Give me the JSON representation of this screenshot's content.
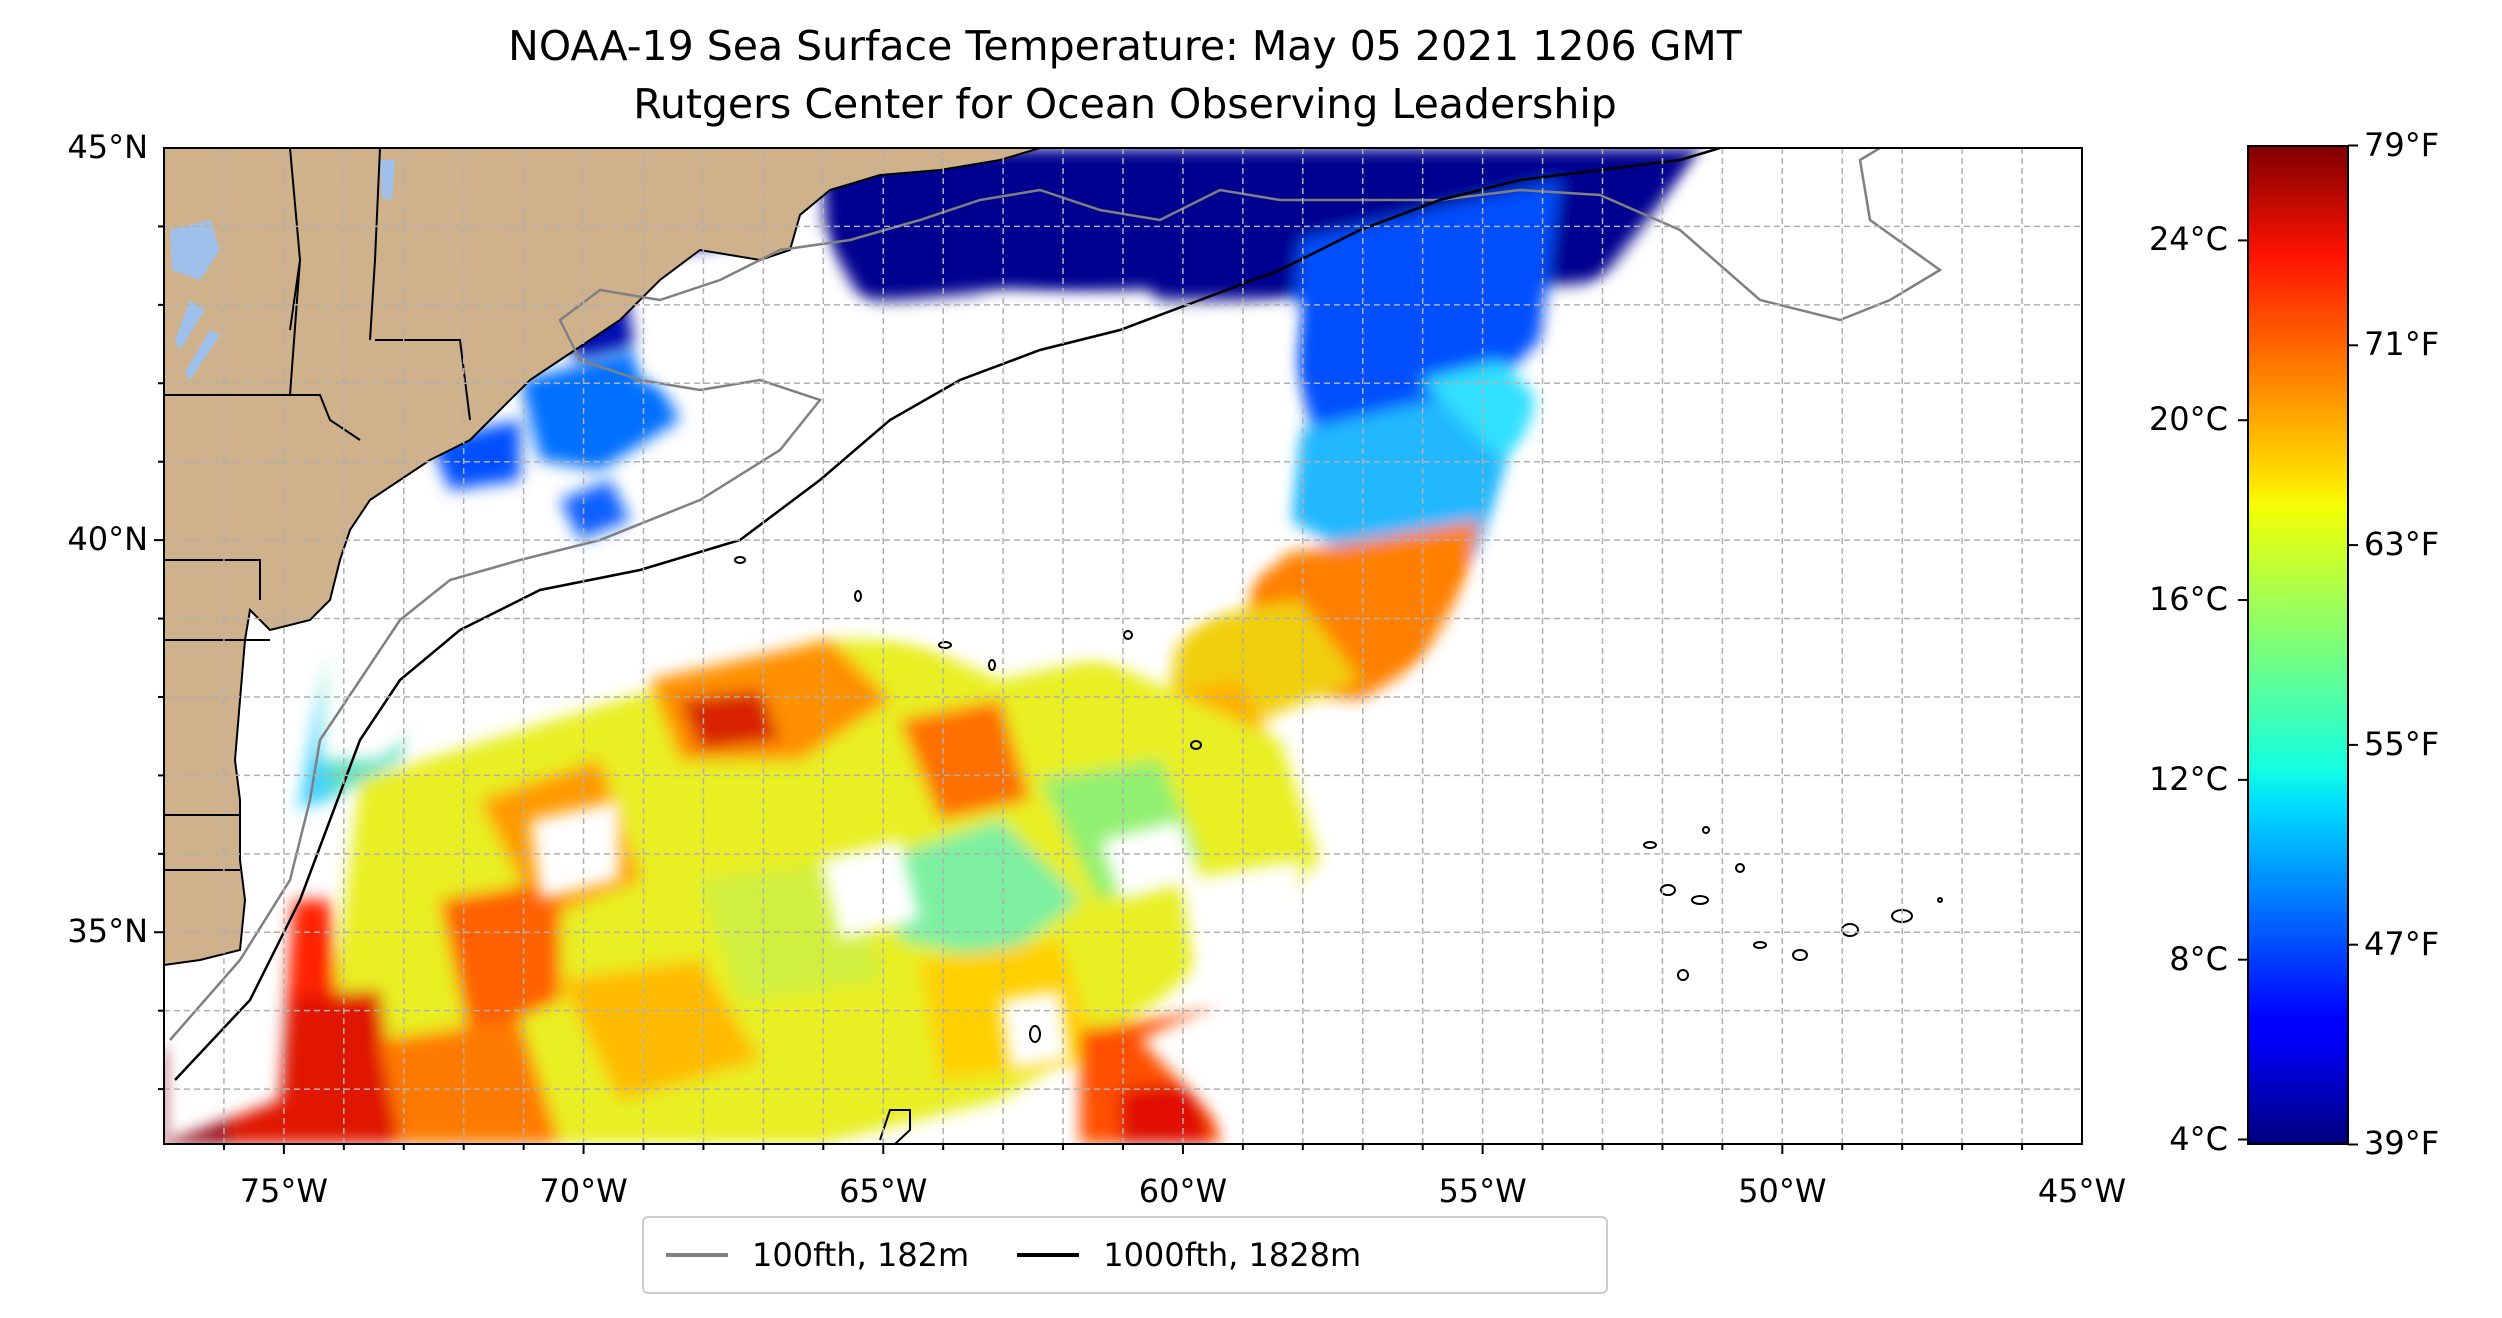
{
  "title": "NOAA-19 Sea Surface Temperature: May 05 2021 1206 GMT",
  "subtitle": "Rutgers Center for Ocean Observing Leadership",
  "map": {
    "lon_range": [
      -77,
      -45
    ],
    "lat_range": [
      32.3,
      45
    ],
    "lat_ticks": [
      {
        "value": 45,
        "label": "45°N"
      },
      {
        "value": 40,
        "label": "40°N"
      },
      {
        "value": 35,
        "label": "35°N"
      }
    ],
    "lon_ticks": [
      {
        "value": -75,
        "label": "75°W"
      },
      {
        "value": -70,
        "label": "70°W"
      },
      {
        "value": -65,
        "label": "65°W"
      },
      {
        "value": -60,
        "label": "60°W"
      },
      {
        "value": -55,
        "label": "55°W"
      },
      {
        "value": -50,
        "label": "50°W"
      },
      {
        "value": -45,
        "label": "45°W"
      }
    ],
    "grid": true,
    "land_color": "#cfb28c",
    "lake_color": "#9ec0ea"
  },
  "colorbar": {
    "colormap": "jet",
    "celsius_range": [
      3.9,
      26.1
    ],
    "celsius_ticks": [
      {
        "value": 24,
        "label": "24°C"
      },
      {
        "value": 20,
        "label": "20°C"
      },
      {
        "value": 16,
        "label": "16°C"
      },
      {
        "value": 12,
        "label": "12°C"
      },
      {
        "value": 8,
        "label": "8°C"
      },
      {
        "value": 4,
        "label": "4°C"
      }
    ],
    "fahrenheit_ticks": [
      {
        "value": 79,
        "label": "79°F"
      },
      {
        "value": 71,
        "label": "71°F"
      },
      {
        "value": 63,
        "label": "63°F"
      },
      {
        "value": 55,
        "label": "55°F"
      },
      {
        "value": 47,
        "label": "47°F"
      },
      {
        "value": 39,
        "label": "39°F"
      }
    ]
  },
  "legend": {
    "items": [
      {
        "label": "100fth, 182m",
        "color": "#808080"
      },
      {
        "label": "1000fth, 1828m",
        "color": "#000000"
      }
    ]
  }
}
